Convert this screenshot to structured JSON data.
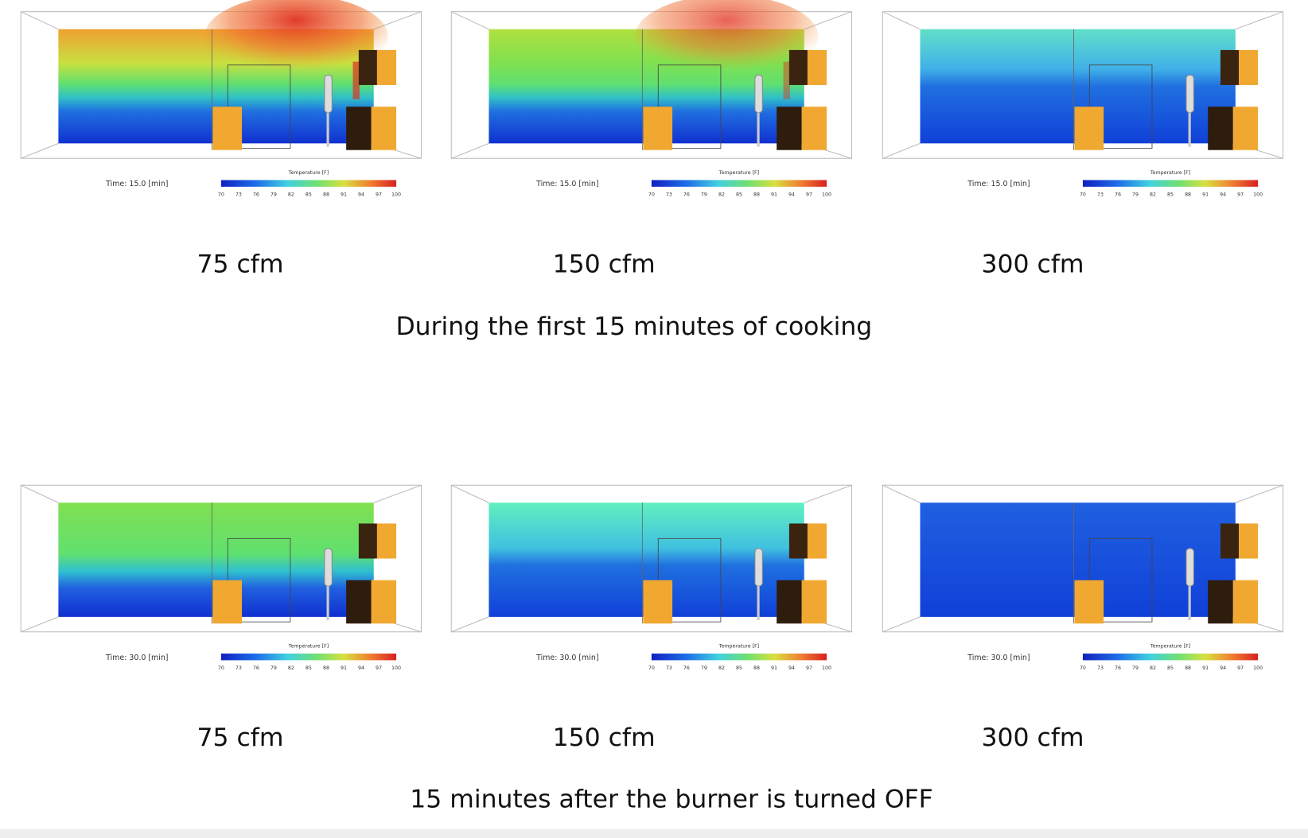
{
  "colorbar": {
    "title": "Temperature [F]",
    "ticks": [
      70,
      73,
      76,
      79,
      82,
      85,
      88,
      91,
      94,
      97,
      100
    ]
  },
  "rows": [
    {
      "time_label": "Time: 15.0 [min]",
      "panels": [
        {
          "label": "75 cfm"
        },
        {
          "label": "150 cfm"
        },
        {
          "label": "300 cfm"
        }
      ],
      "caption": "During the first 15 minutes of cooking"
    },
    {
      "time_label": "Time: 30.0 [min]",
      "panels": [
        {
          "label": "75 cfm"
        },
        {
          "label": "150 cfm"
        },
        {
          "label": "300 cfm"
        }
      ],
      "caption": "15 minutes after the burner is turned OFF"
    }
  ]
}
